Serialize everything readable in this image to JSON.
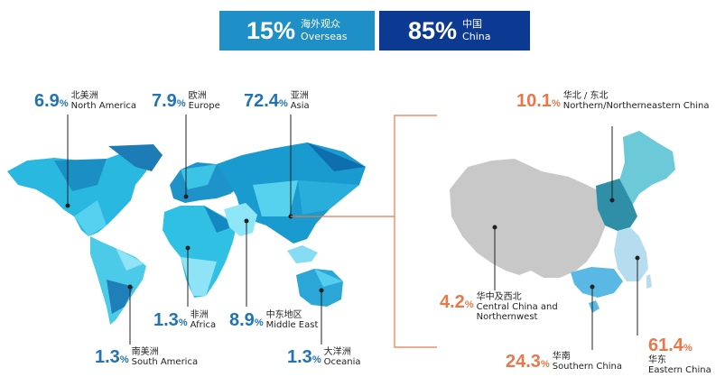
{
  "summary": {
    "overseas": {
      "pct": "15%",
      "zh": "海外观众",
      "en": "Overseas"
    },
    "china": {
      "pct": "85%",
      "zh": "中国",
      "en": "China"
    }
  },
  "colors": {
    "overseas_box": "#1f8fc7",
    "china_box": "#0c3a92",
    "world_value": "#2273b3",
    "china_value": "#e8784a",
    "connector": "#e8784a",
    "china_gray": "#c8c8c8"
  },
  "world": {
    "north_america": {
      "value": "6.9",
      "unit": "%",
      "zh": "北美洲",
      "en": "North America"
    },
    "europe": {
      "value": "7.9",
      "unit": "%",
      "zh": "欧洲",
      "en": "Europe"
    },
    "asia": {
      "value": "72.4",
      "unit": "%",
      "zh": "亚洲",
      "en": "Asia"
    },
    "africa": {
      "value": "1.3",
      "unit": "%",
      "zh": "非洲",
      "en": "Africa"
    },
    "middle_east": {
      "value": "8.9",
      "unit": "%",
      "zh": "中东地区",
      "en": "Middle East"
    },
    "south_america": {
      "value": "1.3",
      "unit": "%",
      "zh": "南美洲",
      "en": "South America"
    },
    "oceania": {
      "value": "1.3",
      "unit": "%",
      "zh": "大洋洲",
      "en": "Oceania"
    }
  },
  "china_regions": {
    "northern": {
      "value": "10.1",
      "unit": "%",
      "zh": "华北 / 东北",
      "en": "Northern/Northerneastern China"
    },
    "central": {
      "value": "4.2",
      "unit": "%",
      "zh": "华中及西北",
      "en": "Central China and",
      "en2": "Northernwest"
    },
    "southern": {
      "value": "24.3",
      "unit": "%",
      "zh": "华南",
      "en": "Southern China"
    },
    "eastern": {
      "value": "61.4",
      "unit": "%",
      "zh": "华东",
      "en": "Eastern China"
    }
  }
}
